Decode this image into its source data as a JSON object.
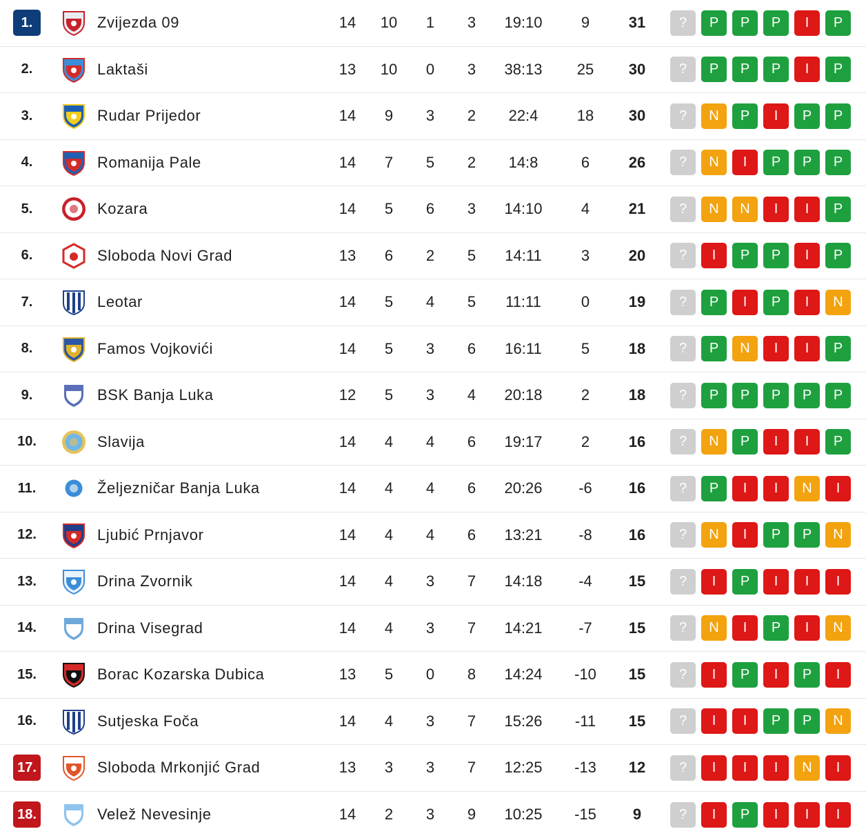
{
  "colors": {
    "promotion": "#0f3d7a",
    "relegation": "#c0161c",
    "win": "#1ea03f",
    "draw": "#f2a30f",
    "loss": "#de1717",
    "upcoming": "#cfcfcf"
  },
  "rows": [
    {
      "rank": "1.",
      "zone": "promo",
      "team": "Zvijezda 09",
      "mp": "14",
      "w": "10",
      "d": "1",
      "l": "3",
      "goals": "19:10",
      "gd": "9",
      "pts": "31",
      "crest": {
        "shape": "shield",
        "c1": "#e8ecf2",
        "c2": "#c8202a"
      },
      "form": [
        "?",
        "P",
        "P",
        "P",
        "I",
        "P"
      ]
    },
    {
      "rank": "2.",
      "zone": "",
      "team": "Laktaši",
      "mp": "13",
      "w": "10",
      "d": "0",
      "l": "3",
      "goals": "38:13",
      "gd": "25",
      "pts": "30",
      "crest": {
        "shape": "shield",
        "c1": "#3b8ed8",
        "c2": "#d42a2a"
      },
      "form": [
        "?",
        "P",
        "P",
        "P",
        "I",
        "P"
      ]
    },
    {
      "rank": "3.",
      "zone": "",
      "team": "Rudar Prijedor",
      "mp": "14",
      "w": "9",
      "d": "3",
      "l": "2",
      "goals": "22:4",
      "gd": "18",
      "pts": "30",
      "crest": {
        "shape": "shield",
        "c1": "#1b5fb5",
        "c2": "#f3cd1a"
      },
      "form": [
        "?",
        "N",
        "P",
        "I",
        "P",
        "P"
      ]
    },
    {
      "rank": "4.",
      "zone": "",
      "team": "Romanija Pale",
      "mp": "14",
      "w": "7",
      "d": "5",
      "l": "2",
      "goals": "14:8",
      "gd": "6",
      "pts": "26",
      "crest": {
        "shape": "shield",
        "c1": "#2060b0",
        "c2": "#d42a2a"
      },
      "form": [
        "?",
        "N",
        "I",
        "P",
        "P",
        "P"
      ]
    },
    {
      "rank": "5.",
      "zone": "",
      "team": "Kozara",
      "mp": "14",
      "w": "5",
      "d": "6",
      "l": "3",
      "goals": "14:10",
      "gd": "4",
      "pts": "21",
      "crest": {
        "shape": "circle",
        "c1": "#ffffff",
        "c2": "#c8202a"
      },
      "form": [
        "?",
        "N",
        "N",
        "I",
        "I",
        "P"
      ]
    },
    {
      "rank": "6.",
      "zone": "",
      "team": "Sloboda Novi Grad",
      "mp": "13",
      "w": "6",
      "d": "2",
      "l": "5",
      "goals": "14:11",
      "gd": "3",
      "pts": "20",
      "crest": {
        "shape": "hex",
        "c1": "#ffffff",
        "c2": "#d42a2a"
      },
      "form": [
        "?",
        "I",
        "P",
        "P",
        "I",
        "P"
      ]
    },
    {
      "rank": "7.",
      "zone": "",
      "team": "Leotar",
      "mp": "14",
      "w": "5",
      "d": "4",
      "l": "5",
      "goals": "11:11",
      "gd": "0",
      "pts": "19",
      "crest": {
        "shape": "stripes",
        "c1": "#ffffff",
        "c2": "#1f3f8a"
      },
      "form": [
        "?",
        "P",
        "I",
        "P",
        "I",
        "N"
      ]
    },
    {
      "rank": "8.",
      "zone": "",
      "team": "Famos Vojkovići",
      "mp": "14",
      "w": "5",
      "d": "3",
      "l": "6",
      "goals": "16:11",
      "gd": "5",
      "pts": "18",
      "crest": {
        "shape": "shield",
        "c1": "#2a57a6",
        "c2": "#e0b32a"
      },
      "form": [
        "?",
        "P",
        "N",
        "I",
        "I",
        "P"
      ]
    },
    {
      "rank": "9.",
      "zone": "",
      "team": "BSK Banja Luka",
      "mp": "12",
      "w": "5",
      "d": "3",
      "l": "4",
      "goals": "20:18",
      "gd": "2",
      "pts": "18",
      "crest": {
        "shape": "shield",
        "c1": "#5a6fb8",
        "c2": "#ffffff"
      },
      "form": [
        "?",
        "P",
        "P",
        "P",
        "P",
        "P"
      ]
    },
    {
      "rank": "10.",
      "zone": "",
      "team": "Slavija",
      "mp": "14",
      "w": "4",
      "d": "4",
      "l": "6",
      "goals": "19:17",
      "gd": "2",
      "pts": "16",
      "crest": {
        "shape": "circle",
        "c1": "#6fb7ea",
        "c2": "#e6c25a"
      },
      "form": [
        "?",
        "N",
        "P",
        "I",
        "I",
        "P"
      ]
    },
    {
      "rank": "11.",
      "zone": "",
      "team": "Željezničar Banja Luka",
      "mp": "14",
      "w": "4",
      "d": "4",
      "l": "6",
      "goals": "20:26",
      "gd": "-6",
      "pts": "16",
      "crest": {
        "shape": "circle",
        "c1": "#3b8ed8",
        "c2": "#ffffff"
      },
      "form": [
        "?",
        "P",
        "I",
        "I",
        "N",
        "I"
      ]
    },
    {
      "rank": "12.",
      "zone": "",
      "team": "Ljubić Prnjavor",
      "mp": "14",
      "w": "4",
      "d": "4",
      "l": "6",
      "goals": "13:21",
      "gd": "-8",
      "pts": "16",
      "crest": {
        "shape": "shield",
        "c1": "#1f3f8a",
        "c2": "#d42a2a"
      },
      "form": [
        "?",
        "N",
        "I",
        "P",
        "P",
        "N"
      ]
    },
    {
      "rank": "13.",
      "zone": "",
      "team": "Drina Zvornik",
      "mp": "14",
      "w": "4",
      "d": "3",
      "l": "7",
      "goals": "14:18",
      "gd": "-4",
      "pts": "15",
      "crest": {
        "shape": "shield",
        "c1": "#eaf3fb",
        "c2": "#3b8ed8"
      },
      "form": [
        "?",
        "I",
        "P",
        "I",
        "I",
        "I"
      ]
    },
    {
      "rank": "14.",
      "zone": "",
      "team": "Drina Visegrad",
      "mp": "14",
      "w": "4",
      "d": "3",
      "l": "7",
      "goals": "14:21",
      "gd": "-7",
      "pts": "15",
      "crest": {
        "shape": "shield",
        "c1": "#6fa9dc",
        "c2": "#ffffff"
      },
      "form": [
        "?",
        "N",
        "I",
        "P",
        "I",
        "N"
      ]
    },
    {
      "rank": "15.",
      "zone": "",
      "team": "Borac Kozarska Dubica",
      "mp": "13",
      "w": "5",
      "d": "0",
      "l": "8",
      "goals": "14:24",
      "gd": "-10",
      "pts": "15",
      "crest": {
        "shape": "shield",
        "c1": "#d42a2a",
        "c2": "#111111"
      },
      "form": [
        "?",
        "I",
        "P",
        "I",
        "P",
        "I"
      ]
    },
    {
      "rank": "16.",
      "zone": "",
      "team": "Sutjeska Foča",
      "mp": "14",
      "w": "4",
      "d": "3",
      "l": "7",
      "goals": "15:26",
      "gd": "-11",
      "pts": "15",
      "crest": {
        "shape": "stripes",
        "c1": "#ffffff",
        "c2": "#1f3f8a"
      },
      "form": [
        "?",
        "I",
        "I",
        "P",
        "P",
        "N"
      ]
    },
    {
      "rank": "17.",
      "zone": "releg",
      "team": "Sloboda Mrkonjić Grad",
      "mp": "13",
      "w": "3",
      "d": "3",
      "l": "7",
      "goals": "12:25",
      "gd": "-13",
      "pts": "12",
      "crest": {
        "shape": "shield",
        "c1": "#ffffff",
        "c2": "#e2552a"
      },
      "form": [
        "?",
        "I",
        "I",
        "I",
        "N",
        "I"
      ]
    },
    {
      "rank": "18.",
      "zone": "releg",
      "team": "Velež Nevesinje",
      "mp": "14",
      "w": "2",
      "d": "3",
      "l": "9",
      "goals": "10:25",
      "gd": "-15",
      "pts": "9",
      "crest": {
        "shape": "shield",
        "c1": "#8fc4ee",
        "c2": "#ffffff"
      },
      "form": [
        "?",
        "I",
        "P",
        "I",
        "I",
        "I"
      ]
    }
  ]
}
